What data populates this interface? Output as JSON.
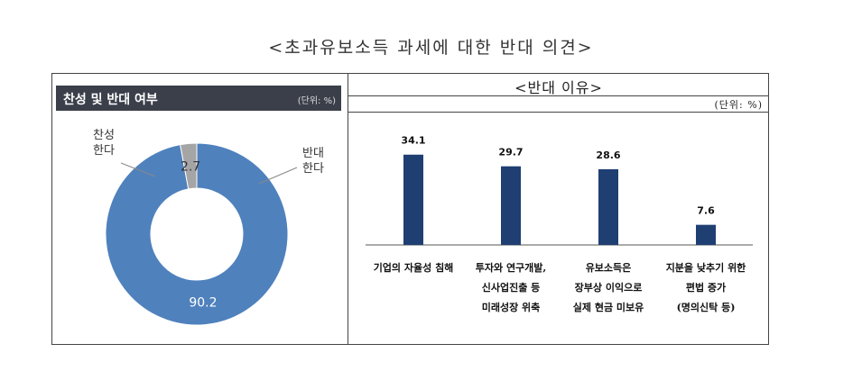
{
  "title": "<초과유보소득 과세에 대한 반대 의견>",
  "left_panel": {
    "header": "찬성 및 반대 여부",
    "unit": "(단위: %)"
  },
  "right_panel": {
    "title": "<반대 이유>",
    "unit": "(단위: %)"
  },
  "chart_data": [
    {
      "type": "pie",
      "style": "donut",
      "title": "찬성 및 반대 여부",
      "unit": "(단위: %)",
      "categories": [
        "반대 한다",
        "찬성 한다"
      ],
      "category_lines": [
        [
          "반대",
          "한다"
        ],
        [
          "찬성",
          "한다"
        ]
      ],
      "values": [
        90.2,
        2.7
      ],
      "value_labels": [
        "90.2",
        "2.7"
      ],
      "colors": [
        "#4f81bd",
        "#a5a5a5"
      ]
    },
    {
      "type": "bar",
      "title": "<반대 이유>",
      "unit": "(단위: %)",
      "categories": [
        [
          "기업의 자율성 침해"
        ],
        [
          "투자와 연구개발,",
          "신사업진출 등",
          "미래성장 위축"
        ],
        [
          "유보소득은",
          "장부상 이익으로",
          "실제 현금 미보유"
        ],
        [
          "지분을 낮추기 위한",
          "편법 증가",
          "(명의신탁 등)"
        ]
      ],
      "values": [
        34.1,
        29.7,
        28.6,
        7.6
      ],
      "value_labels": [
        "34.1",
        "29.7",
        "28.6",
        "7.6"
      ],
      "ylim": [
        0,
        50
      ],
      "grid": false,
      "legend": "none",
      "bar_color": "#1f3f73"
    }
  ]
}
